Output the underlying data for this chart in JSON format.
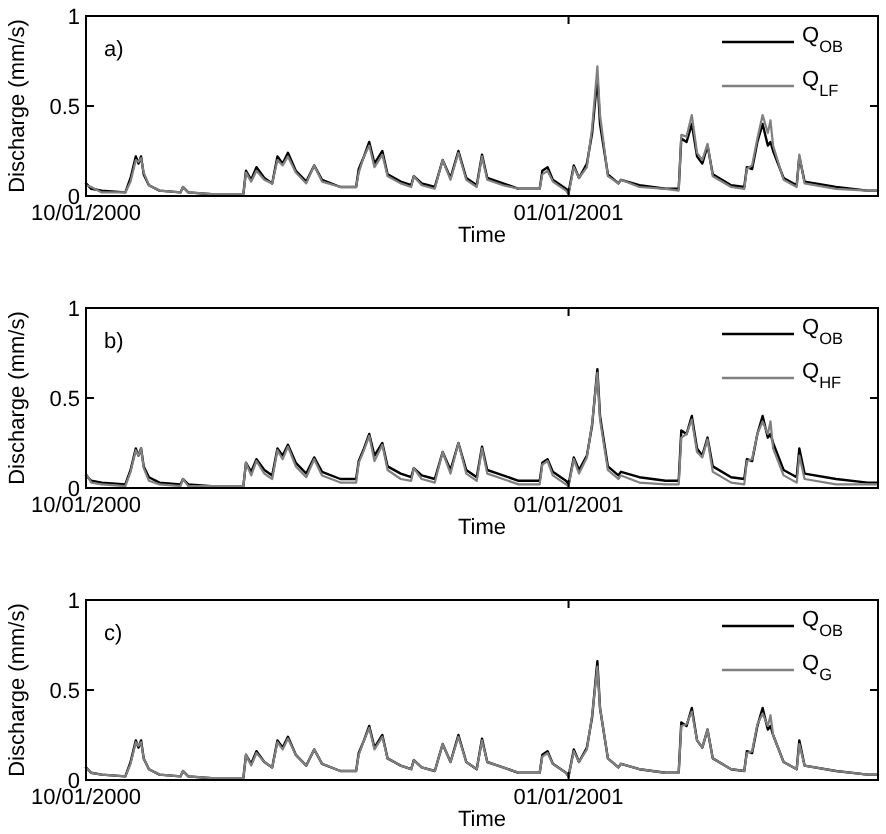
{
  "chart_data": [
    {
      "type": "line",
      "xlabel": "Time",
      "ylabel": "Discharge (mm/s)",
      "annotations": [
        "a)"
      ],
      "legend": "top right",
      "grid": false,
      "xlim": [
        "2000-10-01",
        "2001-03-01"
      ],
      "xticks": [
        {
          "value": "2000-10-01",
          "label": "10/01/2000"
        },
        {
          "value": "2001-01-01",
          "label": "01/01/2001"
        }
      ],
      "ylim": [
        0,
        1
      ],
      "yticks": [
        0,
        0.5,
        1
      ],
      "x": [
        "2000-10-01",
        "2000-10-02",
        "2000-10-04",
        "2000-10-08T12:00",
        "2000-10-09T12:00",
        "2000-10-10T12:00",
        "2000-10-11",
        "2000-10-11T12:00",
        "2000-10-12",
        "2000-10-13",
        "2000-10-15",
        "2000-10-19",
        "2000-10-19T12:00",
        "2000-10-20T12:00",
        "2000-10-25",
        "2000-10-31",
        "2000-10-31T12:00",
        "2000-11-01T12:00",
        "2000-11-02T12:00",
        "2000-11-04",
        "2000-11-05T12:00",
        "2000-11-06T12:00",
        "2000-11-07T12:00",
        "2000-11-08T12:00",
        "2000-11-10",
        "2000-11-12",
        "2000-11-13T12:00",
        "2000-11-15",
        "2000-11-18T12:00",
        "2000-11-21T12:00",
        "2000-11-22",
        "2000-11-23",
        "2000-11-24",
        "2000-11-25",
        "2000-11-26T12:00",
        "2000-11-27T12:00",
        "2000-11-30",
        "2000-12-02",
        "2000-12-02T12:00",
        "2000-12-04",
        "2000-12-06T12:00",
        "2000-12-08",
        "2000-12-09T12:00",
        "2000-12-11",
        "2000-12-12T12:00",
        "2000-12-14T12:00",
        "2000-12-15T12:00",
        "2000-12-16T12:00",
        "2000-12-19T12:00",
        "2000-12-22T12:00",
        "2000-12-26T12:00",
        "2000-12-27",
        "2000-12-28",
        "2000-12-29",
        "2000-12-31T12:00",
        "2001-01-01",
        "2001-01-02",
        "2001-01-03",
        "2001-01-04T12:00",
        "2001-01-05T12:00",
        "2001-01-06T12:00",
        "2001-01-07",
        "2001-01-08T12:00",
        "2001-01-10T12:00",
        "2001-01-11",
        "2001-01-14T12:00",
        "2001-01-19T12:00",
        "2001-01-22",
        "2001-01-22T12:00",
        "2001-01-23T12:00",
        "2001-01-24T12:00",
        "2001-01-25T12:00",
        "2001-01-26T12:00",
        "2001-01-27T12:00",
        "2001-01-28T12:00",
        "2001-02-01",
        "2001-02-03T12:00",
        "2001-02-04",
        "2001-02-05",
        "2001-02-06",
        "2001-02-07",
        "2001-02-08",
        "2001-02-08T12:00",
        "2001-02-09",
        "2001-02-11",
        "2001-02-13T12:00",
        "2001-02-14",
        "2001-02-15",
        "2001-02-21",
        "2001-02-27",
        "2001-03-01"
      ],
      "series": [
        {
          "name": "Q$_{OB}$",
          "color": "#000000",
          "values": [
            0.07,
            0.04,
            0.03,
            0.02,
            0.1,
            0.22,
            0.18,
            0.22,
            0.12,
            0.06,
            0.03,
            0.02,
            0.05,
            0.02,
            0.01,
            0.01,
            0.14,
            0.09,
            0.16,
            0.1,
            0.07,
            0.22,
            0.18,
            0.24,
            0.14,
            0.08,
            0.17,
            0.09,
            0.05,
            0.05,
            0.15,
            0.22,
            0.3,
            0.18,
            0.25,
            0.12,
            0.08,
            0.06,
            0.11,
            0.07,
            0.05,
            0.2,
            0.1,
            0.25,
            0.1,
            0.06,
            0.23,
            0.1,
            0.07,
            0.04,
            0.04,
            0.14,
            0.16,
            0.09,
            0.04,
            0.02,
            0.17,
            0.1,
            0.18,
            0.35,
            0.66,
            0.4,
            0.12,
            0.07,
            0.09,
            0.06,
            0.04,
            0.04,
            0.32,
            0.3,
            0.4,
            0.22,
            0.18,
            0.28,
            0.12,
            0.06,
            0.05,
            0.16,
            0.15,
            0.3,
            0.4,
            0.28,
            0.3,
            0.25,
            0.1,
            0.06,
            0.22,
            0.08,
            0.05,
            0.03,
            0.03
          ]
        },
        {
          "name": "Q$_{LF}$",
          "color": "#808080",
          "values": [
            0.06,
            0.05,
            0.02,
            0.02,
            0.08,
            0.2,
            0.19,
            0.21,
            0.13,
            0.06,
            0.03,
            0.02,
            0.05,
            0.02,
            0.01,
            0.01,
            0.13,
            0.08,
            0.14,
            0.09,
            0.07,
            0.2,
            0.17,
            0.22,
            0.13,
            0.07,
            0.17,
            0.08,
            0.05,
            0.05,
            0.13,
            0.22,
            0.28,
            0.16,
            0.23,
            0.11,
            0.07,
            0.05,
            0.11,
            0.06,
            0.04,
            0.2,
            0.09,
            0.24,
            0.09,
            0.05,
            0.22,
            0.09,
            0.06,
            0.04,
            0.04,
            0.12,
            0.14,
            0.08,
            0.03,
            0.01,
            0.16,
            0.1,
            0.16,
            0.38,
            0.72,
            0.45,
            0.11,
            0.07,
            0.09,
            0.05,
            0.04,
            0.03,
            0.34,
            0.33,
            0.45,
            0.24,
            0.2,
            0.29,
            0.11,
            0.05,
            0.04,
            0.15,
            0.17,
            0.32,
            0.45,
            0.35,
            0.42,
            0.28,
            0.09,
            0.05,
            0.23,
            0.07,
            0.04,
            0.03,
            0.03
          ]
        }
      ]
    },
    {
      "type": "line",
      "xlabel": "Time",
      "ylabel": "Discharge (mm/s)",
      "annotations": [
        "b)"
      ],
      "legend": "top right",
      "grid": false,
      "xlim": [
        "2000-10-01",
        "2001-03-01"
      ],
      "xticks": [
        {
          "value": "2000-10-01",
          "label": "10/01/2000"
        },
        {
          "value": "2001-01-01",
          "label": "01/01/2001"
        }
      ],
      "ylim": [
        0,
        1
      ],
      "yticks": [
        0,
        0.5,
        1
      ],
      "x": [
        "2000-10-01",
        "2000-10-02",
        "2000-10-04",
        "2000-10-08T12:00",
        "2000-10-09T12:00",
        "2000-10-10T12:00",
        "2000-10-11",
        "2000-10-11T12:00",
        "2000-10-12",
        "2000-10-13",
        "2000-10-15",
        "2000-10-19",
        "2000-10-19T12:00",
        "2000-10-20T12:00",
        "2000-10-25",
        "2000-10-31",
        "2000-10-31T12:00",
        "2000-11-01T12:00",
        "2000-11-02T12:00",
        "2000-11-04",
        "2000-11-05T12:00",
        "2000-11-06T12:00",
        "2000-11-07T12:00",
        "2000-11-08T12:00",
        "2000-11-10",
        "2000-11-12",
        "2000-11-13T12:00",
        "2000-11-15",
        "2000-11-18T12:00",
        "2000-11-21T12:00",
        "2000-11-22",
        "2000-11-23",
        "2000-11-24",
        "2000-11-25",
        "2000-11-26T12:00",
        "2000-11-27T12:00",
        "2000-11-30",
        "2000-12-02",
        "2000-12-02T12:00",
        "2000-12-04",
        "2000-12-06T12:00",
        "2000-12-08",
        "2000-12-09T12:00",
        "2000-12-11",
        "2000-12-12T12:00",
        "2000-12-14T12:00",
        "2000-12-15T12:00",
        "2000-12-16T12:00",
        "2000-12-19T12:00",
        "2000-12-22T12:00",
        "2000-12-26T12:00",
        "2000-12-27",
        "2000-12-28",
        "2000-12-29",
        "2000-12-31T12:00",
        "2001-01-01",
        "2001-01-02",
        "2001-01-03",
        "2001-01-04T12:00",
        "2001-01-05T12:00",
        "2001-01-06T12:00",
        "2001-01-07",
        "2001-01-08T12:00",
        "2001-01-10T12:00",
        "2001-01-11",
        "2001-01-14T12:00",
        "2001-01-19T12:00",
        "2001-01-22",
        "2001-01-22T12:00",
        "2001-01-23T12:00",
        "2001-01-24T12:00",
        "2001-01-25T12:00",
        "2001-01-26T12:00",
        "2001-01-27T12:00",
        "2001-01-28T12:00",
        "2001-02-01",
        "2001-02-03T12:00",
        "2001-02-04",
        "2001-02-05",
        "2001-02-06",
        "2001-02-07",
        "2001-02-08",
        "2001-02-08T12:00",
        "2001-02-09",
        "2001-02-11",
        "2001-02-13T12:00",
        "2001-02-14",
        "2001-02-15",
        "2001-02-21",
        "2001-02-27",
        "2001-03-01"
      ],
      "series": [
        {
          "name": "Q$_{OB}$",
          "color": "#000000",
          "values": [
            0.07,
            0.04,
            0.03,
            0.02,
            0.1,
            0.22,
            0.18,
            0.22,
            0.12,
            0.06,
            0.03,
            0.02,
            0.05,
            0.02,
            0.01,
            0.01,
            0.14,
            0.09,
            0.16,
            0.1,
            0.07,
            0.22,
            0.18,
            0.24,
            0.14,
            0.08,
            0.17,
            0.09,
            0.05,
            0.05,
            0.15,
            0.22,
            0.3,
            0.18,
            0.25,
            0.12,
            0.08,
            0.06,
            0.11,
            0.07,
            0.05,
            0.2,
            0.1,
            0.25,
            0.1,
            0.06,
            0.23,
            0.1,
            0.07,
            0.04,
            0.04,
            0.14,
            0.16,
            0.09,
            0.04,
            0.02,
            0.17,
            0.1,
            0.18,
            0.35,
            0.66,
            0.4,
            0.12,
            0.07,
            0.09,
            0.06,
            0.04,
            0.04,
            0.32,
            0.3,
            0.4,
            0.22,
            0.18,
            0.28,
            0.12,
            0.06,
            0.05,
            0.16,
            0.15,
            0.3,
            0.4,
            0.28,
            0.3,
            0.25,
            0.1,
            0.06,
            0.22,
            0.08,
            0.05,
            0.03,
            0.03
          ]
        },
        {
          "name": "Q$_{HF}$",
          "color": "#808080",
          "values": [
            0.08,
            0.03,
            0.02,
            0.01,
            0.09,
            0.21,
            0.18,
            0.22,
            0.11,
            0.04,
            0.02,
            0.01,
            0.05,
            0.01,
            0.01,
            0.01,
            0.14,
            0.07,
            0.15,
            0.08,
            0.05,
            0.21,
            0.16,
            0.23,
            0.12,
            0.06,
            0.16,
            0.07,
            0.03,
            0.03,
            0.14,
            0.21,
            0.29,
            0.15,
            0.24,
            0.1,
            0.05,
            0.04,
            0.11,
            0.05,
            0.03,
            0.2,
            0.08,
            0.25,
            0.08,
            0.04,
            0.22,
            0.08,
            0.05,
            0.02,
            0.02,
            0.13,
            0.15,
            0.07,
            0.02,
            0.01,
            0.16,
            0.08,
            0.17,
            0.36,
            0.64,
            0.38,
            0.1,
            0.05,
            0.07,
            0.03,
            0.02,
            0.02,
            0.28,
            0.3,
            0.38,
            0.2,
            0.17,
            0.27,
            0.09,
            0.03,
            0.02,
            0.15,
            0.16,
            0.3,
            0.37,
            0.3,
            0.37,
            0.22,
            0.07,
            0.03,
            0.18,
            0.05,
            0.02,
            0.02,
            0.02
          ]
        }
      ]
    },
    {
      "type": "line",
      "xlabel": "Time",
      "ylabel": "Discharge (mm/s)",
      "annotations": [
        "c)"
      ],
      "legend": "top right",
      "grid": false,
      "xlim": [
        "2000-10-01",
        "2001-03-01"
      ],
      "xticks": [
        {
          "value": "2000-10-01",
          "label": "10/01/2000"
        },
        {
          "value": "2001-01-01",
          "label": "01/01/2001"
        }
      ],
      "ylim": [
        0,
        1
      ],
      "yticks": [
        0,
        0.5,
        1
      ],
      "x": [
        "2000-10-01",
        "2000-10-02",
        "2000-10-04",
        "2000-10-08T12:00",
        "2000-10-09T12:00",
        "2000-10-10T12:00",
        "2000-10-11",
        "2000-10-11T12:00",
        "2000-10-12",
        "2000-10-13",
        "2000-10-15",
        "2000-10-19",
        "2000-10-19T12:00",
        "2000-10-20T12:00",
        "2000-10-25",
        "2000-10-31",
        "2000-10-31T12:00",
        "2000-11-01T12:00",
        "2000-11-02T12:00",
        "2000-11-04",
        "2000-11-05T12:00",
        "2000-11-06T12:00",
        "2000-11-07T12:00",
        "2000-11-08T12:00",
        "2000-11-10",
        "2000-11-12",
        "2000-11-13T12:00",
        "2000-11-15",
        "2000-11-18T12:00",
        "2000-11-21T12:00",
        "2000-11-22",
        "2000-11-23",
        "2000-11-24",
        "2000-11-25",
        "2000-11-26T12:00",
        "2000-11-27T12:00",
        "2000-11-30",
        "2000-12-02",
        "2000-12-02T12:00",
        "2000-12-04",
        "2000-12-06T12:00",
        "2000-12-08",
        "2000-12-09T12:00",
        "2000-12-11",
        "2000-12-12T12:00",
        "2000-12-14T12:00",
        "2000-12-15T12:00",
        "2000-12-16T12:00",
        "2000-12-19T12:00",
        "2000-12-22T12:00",
        "2000-12-26T12:00",
        "2000-12-27",
        "2000-12-28",
        "2000-12-29",
        "2000-12-31T12:00",
        "2001-01-01",
        "2001-01-02",
        "2001-01-03",
        "2001-01-04T12:00",
        "2001-01-05T12:00",
        "2001-01-06T12:00",
        "2001-01-07",
        "2001-01-08T12:00",
        "2001-01-10T12:00",
        "2001-01-11",
        "2001-01-14T12:00",
        "2001-01-19T12:00",
        "2001-01-22",
        "2001-01-22T12:00",
        "2001-01-23T12:00",
        "2001-01-24T12:00",
        "2001-01-25T12:00",
        "2001-01-26T12:00",
        "2001-01-27T12:00",
        "2001-01-28T12:00",
        "2001-02-01",
        "2001-02-03T12:00",
        "2001-02-04",
        "2001-02-05",
        "2001-02-06",
        "2001-02-07",
        "2001-02-08",
        "2001-02-08T12:00",
        "2001-02-09",
        "2001-02-11",
        "2001-02-13T12:00",
        "2001-02-14",
        "2001-02-15",
        "2001-02-21",
        "2001-02-27",
        "2001-03-01"
      ],
      "series": [
        {
          "name": "Q$_{OB}$",
          "color": "#000000",
          "values": [
            0.07,
            0.04,
            0.03,
            0.02,
            0.1,
            0.22,
            0.18,
            0.22,
            0.12,
            0.06,
            0.03,
            0.02,
            0.05,
            0.02,
            0.01,
            0.01,
            0.14,
            0.09,
            0.16,
            0.1,
            0.07,
            0.22,
            0.18,
            0.24,
            0.14,
            0.08,
            0.17,
            0.09,
            0.05,
            0.05,
            0.15,
            0.22,
            0.3,
            0.18,
            0.25,
            0.12,
            0.08,
            0.06,
            0.11,
            0.07,
            0.05,
            0.2,
            0.1,
            0.25,
            0.1,
            0.06,
            0.23,
            0.1,
            0.07,
            0.04,
            0.04,
            0.14,
            0.16,
            0.09,
            0.04,
            0.02,
            0.17,
            0.1,
            0.18,
            0.35,
            0.66,
            0.4,
            0.12,
            0.07,
            0.09,
            0.06,
            0.04,
            0.04,
            0.32,
            0.3,
            0.4,
            0.22,
            0.18,
            0.28,
            0.12,
            0.06,
            0.05,
            0.16,
            0.15,
            0.3,
            0.4,
            0.28,
            0.3,
            0.25,
            0.1,
            0.06,
            0.22,
            0.08,
            0.05,
            0.03,
            0.03
          ]
        },
        {
          "name": "Q$_{G}$",
          "color": "#808080",
          "values": [
            0.07,
            0.04,
            0.03,
            0.02,
            0.09,
            0.21,
            0.19,
            0.21,
            0.12,
            0.06,
            0.03,
            0.02,
            0.05,
            0.02,
            0.01,
            0.01,
            0.14,
            0.08,
            0.15,
            0.1,
            0.07,
            0.21,
            0.17,
            0.23,
            0.14,
            0.08,
            0.17,
            0.09,
            0.05,
            0.05,
            0.14,
            0.22,
            0.29,
            0.17,
            0.24,
            0.12,
            0.08,
            0.06,
            0.11,
            0.07,
            0.05,
            0.2,
            0.1,
            0.24,
            0.1,
            0.06,
            0.22,
            0.1,
            0.07,
            0.04,
            0.04,
            0.13,
            0.15,
            0.09,
            0.04,
            0.02,
            0.16,
            0.1,
            0.17,
            0.36,
            0.63,
            0.4,
            0.12,
            0.07,
            0.09,
            0.06,
            0.04,
            0.04,
            0.3,
            0.31,
            0.38,
            0.22,
            0.18,
            0.28,
            0.12,
            0.06,
            0.05,
            0.15,
            0.16,
            0.31,
            0.37,
            0.3,
            0.36,
            0.25,
            0.1,
            0.06,
            0.2,
            0.08,
            0.05,
            0.03,
            0.03
          ]
        }
      ]
    }
  ]
}
